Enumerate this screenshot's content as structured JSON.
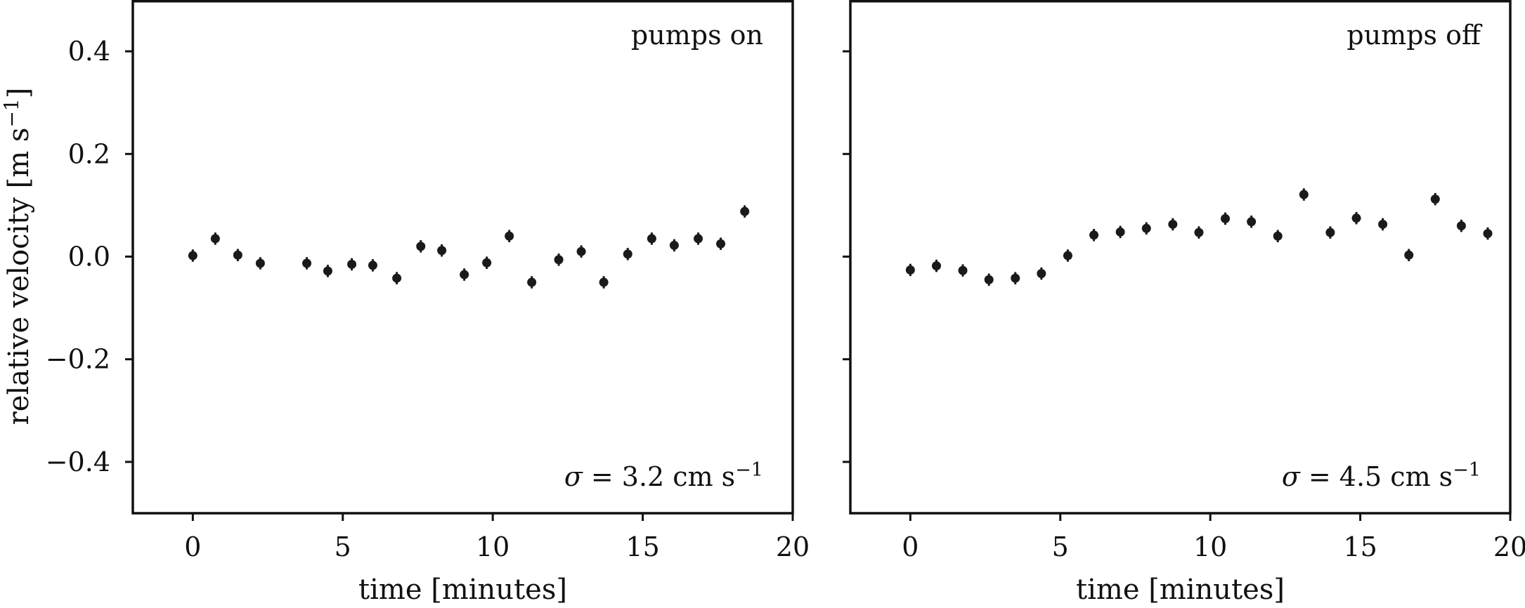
{
  "chart_data": [
    {
      "type": "scatter",
      "panel_label": "pumps on",
      "annotation_prefix": "σ = ",
      "annotation_value": "3.2",
      "annotation_unit": " cm s",
      "annotation_exp": "−1",
      "xlabel": "time [minutes]",
      "ylabel_main": "relative velocity [m s",
      "ylabel_exp": "−1",
      "ylabel_end": "]",
      "xlim": [
        -2,
        20
      ],
      "ylim": [
        -0.5,
        0.5
      ],
      "xticks": [
        0,
        5,
        10,
        15,
        20
      ],
      "xtick_labels": [
        "0",
        "5",
        "10",
        "15",
        "20"
      ],
      "yticks": [
        0.4,
        0.2,
        0.0,
        -0.2,
        -0.4
      ],
      "ytick_labels": [
        "0.4",
        "0.2",
        "0.0",
        "−0.2",
        "−0.4"
      ],
      "error": 0.012,
      "x": [
        0.0,
        0.75,
        1.5,
        2.25,
        3.8,
        4.5,
        5.3,
        6.0,
        6.8,
        7.6,
        8.3,
        9.05,
        9.8,
        10.55,
        11.3,
        12.2,
        12.95,
        13.7,
        14.5,
        15.3,
        16.05,
        16.85,
        17.6,
        18.4
      ],
      "y": [
        0.002,
        0.035,
        0.003,
        -0.013,
        -0.013,
        -0.028,
        -0.015,
        -0.017,
        -0.042,
        0.02,
        0.012,
        -0.035,
        -0.012,
        0.04,
        -0.05,
        -0.006,
        0.01,
        -0.05,
        0.005,
        0.035,
        0.022,
        0.035,
        0.025,
        0.088
      ]
    },
    {
      "type": "scatter",
      "panel_label": "pumps off",
      "annotation_prefix": "σ = ",
      "annotation_value": "4.5",
      "annotation_unit": " cm s",
      "annotation_exp": "−1",
      "xlabel": "time [minutes]",
      "xlim": [
        -2,
        20
      ],
      "ylim": [
        -0.5,
        0.5
      ],
      "xticks": [
        0,
        5,
        10,
        15,
        20
      ],
      "xtick_labels": [
        "0",
        "5",
        "10",
        "15",
        "20"
      ],
      "yticks": [
        0.4,
        0.2,
        0.0,
        -0.2,
        -0.4
      ],
      "error": 0.012,
      "x": [
        0.0,
        0.87,
        1.75,
        2.62,
        3.5,
        4.37,
        5.25,
        6.12,
        7.0,
        7.87,
        8.75,
        9.62,
        10.5,
        11.37,
        12.25,
        13.12,
        14.0,
        14.87,
        15.75,
        16.62,
        17.5,
        18.37,
        19.25
      ],
      "y": [
        -0.026,
        -0.018,
        -0.027,
        -0.045,
        -0.042,
        -0.033,
        0.002,
        0.042,
        0.048,
        0.055,
        0.063,
        0.047,
        0.074,
        0.068,
        0.04,
        0.121,
        0.047,
        0.075,
        0.063,
        0.003,
        0.112,
        0.06,
        0.045
      ]
    }
  ]
}
